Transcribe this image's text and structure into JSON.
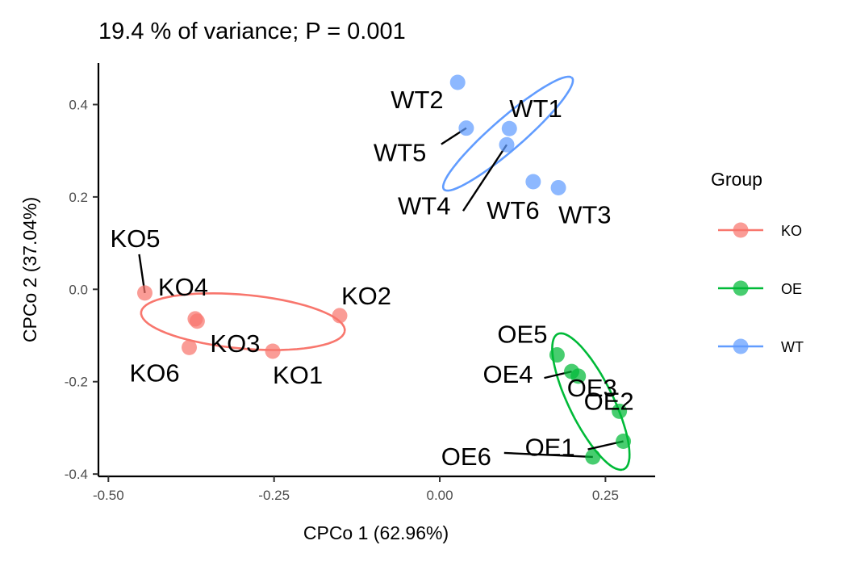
{
  "chart_data": {
    "type": "scatter",
    "title": "19.4 % of variance; P = 0.001",
    "xlabel": "CPCo 1 (62.96%)",
    "ylabel": "CPCo 2 (37.04%)",
    "xlim": [
      -0.515,
      0.325
    ],
    "ylim": [
      -0.405,
      0.49
    ],
    "x_ticks": [
      {
        "value": -0.5,
        "label": "-0.50"
      },
      {
        "value": -0.25,
        "label": "-0.25"
      },
      {
        "value": 0.0,
        "label": "0.00"
      },
      {
        "value": 0.25,
        "label": "0.25"
      }
    ],
    "y_ticks": [
      {
        "value": 0.4,
        "label": "0.4"
      },
      {
        "value": 0.2,
        "label": "0.2"
      },
      {
        "value": 0.0,
        "label": "0.0"
      },
      {
        "value": -0.2,
        "label": "-0.2"
      },
      {
        "value": -0.4,
        "label": "-0.4"
      }
    ],
    "grid": false,
    "legend": {
      "title": "Group",
      "placement": "right",
      "entries": [
        {
          "name": "KO",
          "color": "#F8766D"
        },
        {
          "name": "OE",
          "color": "#00BA38"
        },
        {
          "name": "WT",
          "color": "#619CFF"
        }
      ]
    },
    "series": [
      {
        "name": "KO",
        "color": "#F8766D",
        "points": [
          {
            "label": "KO1",
            "x": -0.252,
            "y": -0.134
          },
          {
            "label": "KO2",
            "x": -0.151,
            "y": -0.057
          },
          {
            "label": "KO3",
            "x": -0.366,
            "y": -0.069
          },
          {
            "label": "KO4",
            "x": -0.369,
            "y": -0.064
          },
          {
            "label": "KO5",
            "x": -0.445,
            "y": -0.008
          },
          {
            "label": "KO6",
            "x": -0.378,
            "y": -0.126
          }
        ]
      },
      {
        "name": "OE",
        "color": "#00BA38",
        "points": [
          {
            "label": "OE1",
            "x": 0.277,
            "y": -0.329
          },
          {
            "label": "OE2",
            "x": 0.271,
            "y": -0.264
          },
          {
            "label": "OE3",
            "x": 0.209,
            "y": -0.188
          },
          {
            "label": "OE4",
            "x": 0.199,
            "y": -0.178
          },
          {
            "label": "OE5",
            "x": 0.177,
            "y": -0.142
          },
          {
            "label": "OE6",
            "x": 0.231,
            "y": -0.363
          }
        ]
      },
      {
        "name": "WT",
        "color": "#619CFF",
        "points": [
          {
            "label": "WT1",
            "x": 0.105,
            "y": 0.348
          },
          {
            "label": "WT2",
            "x": 0.027,
            "y": 0.448
          },
          {
            "label": "WT3",
            "x": 0.179,
            "y": 0.22
          },
          {
            "label": "WT4",
            "x": 0.101,
            "y": 0.313
          },
          {
            "label": "WT5",
            "x": 0.04,
            "y": 0.349
          },
          {
            "label": "WT6",
            "x": 0.141,
            "y": 0.233
          }
        ]
      }
    ]
  }
}
